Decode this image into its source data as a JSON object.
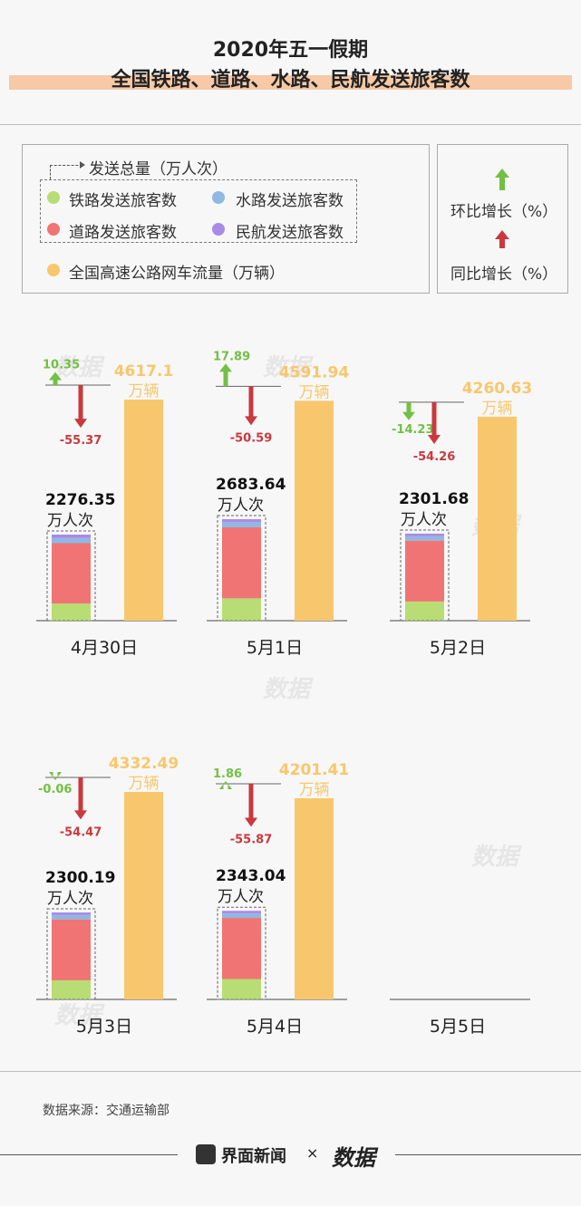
{
  "header": {
    "title_line1": "2020年五一假期",
    "title_line2": "全国铁路、道路、水路、民航发送旅客数"
  },
  "legend": {
    "total_label": "发送总量（万人次）",
    "rail": "铁路发送旅客数",
    "water": "水路发送旅客数",
    "road": "道路发送旅客数",
    "air": "民航发送旅客数",
    "highway": "全国高速公路网车流量（万辆）",
    "mom": "环比增长（%）",
    "yoy": "同比增长（%）"
  },
  "colors": {
    "rail": "#b7dd74",
    "road": "#f07474",
    "water": "#8fb8e3",
    "air": "#a88be6",
    "highway": "#f8c76d",
    "mom": "#72c044",
    "yoy": "#c9393e"
  },
  "units": {
    "passengers": "万人次",
    "vehicles": "万辆"
  },
  "chart_data": {
    "type": "bar",
    "categories": [
      "4月30日",
      "5月1日",
      "5月2日",
      "5月3日",
      "5月4日",
      "5月5日"
    ],
    "series": [
      {
        "name": "发送总量（万人次）",
        "values": [
          2276.35,
          2683.64,
          2301.68,
          2300.19,
          2343.04,
          null
        ]
      },
      {
        "name": "全国高速公路网车流量（万辆）",
        "values": [
          4617.1,
          4591.94,
          4260.63,
          4332.49,
          4201.41,
          null
        ]
      },
      {
        "name": "环比增长（%）",
        "values": [
          10.35,
          17.89,
          -14.23,
          -0.06,
          1.86,
          null
        ]
      },
      {
        "name": "同比增长（%）",
        "values": [
          -55.37,
          -50.59,
          -54.26,
          -54.47,
          -55.87,
          null
        ]
      }
    ],
    "composition_share": {
      "rail": [
        0.2,
        0.22,
        0.22,
        0.22,
        0.23
      ],
      "road": [
        0.7,
        0.7,
        0.7,
        0.7,
        0.69
      ],
      "water": [
        0.06,
        0.05,
        0.05,
        0.05,
        0.05
      ],
      "air": [
        0.04,
        0.03,
        0.03,
        0.03,
        0.03
      ]
    }
  },
  "footer": {
    "source": "数据来源：交通运输部",
    "brand1": "界面新闻",
    "times": "×",
    "brand2": "数据"
  }
}
